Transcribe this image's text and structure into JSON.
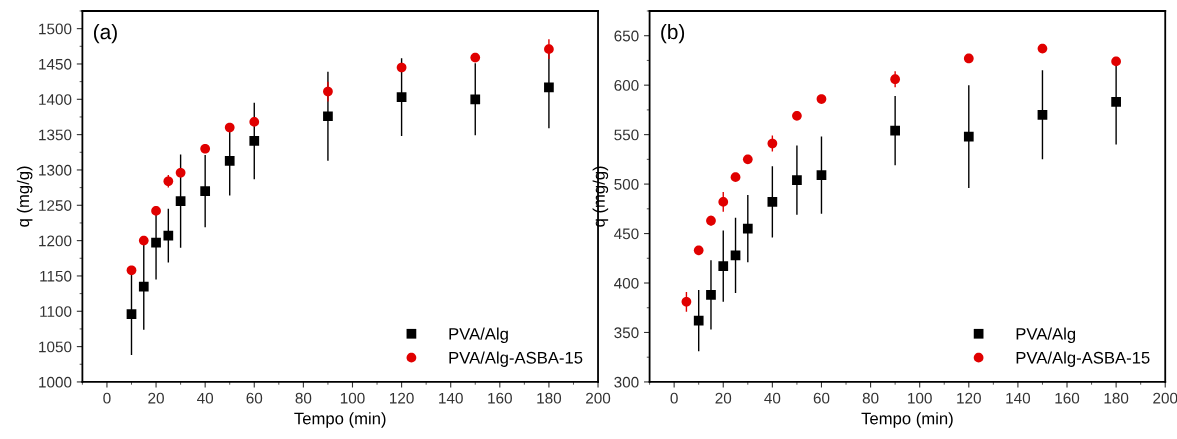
{
  "chart_data": [
    {
      "type": "scatter",
      "annotations": [
        "(a)"
      ],
      "xlabel": "Tempo (min)",
      "ylabel": "q (mg/g)",
      "xlim": [
        -10,
        200
      ],
      "ylim": [
        1000,
        1525
      ],
      "xticks": [
        0,
        20,
        40,
        60,
        80,
        100,
        120,
        140,
        160,
        180,
        200
      ],
      "yticks": [
        1000,
        1050,
        1100,
        1150,
        1200,
        1250,
        1300,
        1350,
        1400,
        1450,
        1500
      ],
      "legend": "bottom right",
      "grid": false,
      "series": [
        {
          "name": "PVA/Alg",
          "color": "#000000",
          "marker": "square",
          "x": [
            10,
            15,
            20,
            25,
            30,
            40,
            50,
            60,
            90,
            120,
            150,
            180
          ],
          "values": [
            1096,
            1135,
            1197,
            1207,
            1256,
            1270,
            1313,
            1341,
            1376,
            1403,
            1400,
            1417
          ],
          "errors": [
            58,
            61,
            52,
            38,
            66,
            51,
            49,
            54,
            63,
            55,
            51,
            58
          ]
        },
        {
          "name": "PVA/Alg-ASBA-15",
          "color": "#e00000",
          "marker": "circle",
          "x": [
            10,
            15,
            20,
            25,
            30,
            40,
            50,
            60,
            90,
            120,
            150,
            180
          ],
          "values": [
            1158,
            1200,
            1242,
            1284,
            1296,
            1330,
            1360,
            1368,
            1411,
            1445,
            1459,
            1471
          ],
          "errors": [
            3,
            3,
            3,
            9,
            3,
            3,
            3,
            3,
            14,
            5,
            4,
            14
          ]
        }
      ]
    },
    {
      "type": "scatter",
      "annotations": [
        "(b)"
      ],
      "xlabel": "Tempo (min)",
      "ylabel": "q (mg/g)",
      "xlim": [
        -10,
        200
      ],
      "ylim": [
        300,
        675
      ],
      "xticks": [
        0,
        20,
        40,
        60,
        80,
        100,
        120,
        140,
        160,
        180,
        200
      ],
      "yticks": [
        300,
        350,
        400,
        450,
        500,
        550,
        600,
        650
      ],
      "legend": "bottom right",
      "grid": false,
      "series": [
        {
          "name": "PVA/Alg",
          "color": "#000000",
          "marker": "square",
          "x": [
            10,
            15,
            20,
            25,
            30,
            40,
            50,
            60,
            90,
            120,
            150,
            180
          ],
          "values": [
            362,
            388,
            417,
            428,
            455,
            482,
            504,
            509,
            554,
            548,
            570,
            583
          ],
          "errors": [
            31,
            35,
            36,
            38,
            34,
            36,
            35,
            39,
            35,
            52,
            45,
            43
          ]
        },
        {
          "name": "PVA/Alg-ASBA-15",
          "color": "#e00000",
          "marker": "circle",
          "x": [
            5,
            10,
            15,
            20,
            25,
            30,
            40,
            50,
            60,
            90,
            120,
            150,
            180
          ],
          "values": [
            381,
            433,
            463,
            482,
            507,
            525,
            541,
            569,
            586,
            606,
            627,
            637,
            624
          ],
          "errors": [
            10,
            2,
            5,
            10,
            2,
            2,
            8,
            2,
            2,
            8,
            2,
            4,
            2
          ]
        }
      ]
    }
  ]
}
